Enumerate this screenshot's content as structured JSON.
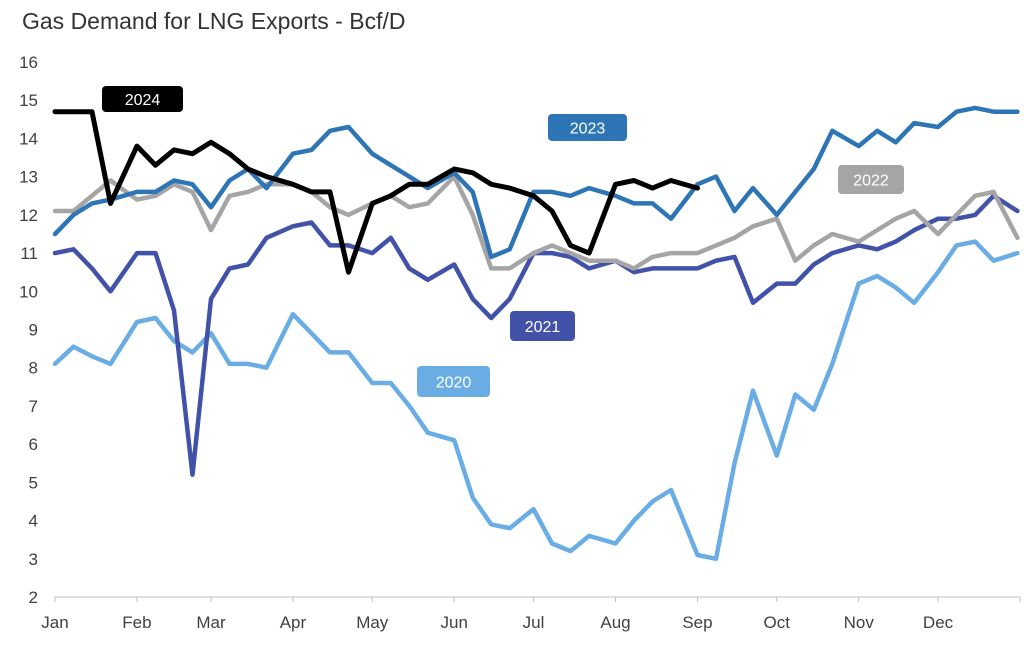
{
  "chart_data": {
    "type": "line",
    "title": "Gas Demand for LNG Exports - Bcf/D",
    "xlabel": "",
    "ylabel": "",
    "ylim": [
      2,
      16
    ],
    "yticks": [
      2,
      3,
      4,
      5,
      6,
      7,
      8,
      9,
      10,
      11,
      12,
      13,
      14,
      15,
      16
    ],
    "x_tick_labels": [
      "Jan",
      "Feb",
      "Mar",
      "Apr",
      "May",
      "Jun",
      "Jul",
      "Aug",
      "Sep",
      "Oct",
      "Nov",
      "Dec"
    ],
    "grid": false,
    "x": [
      "Jan 1",
      "Jan 8",
      "Jan 15",
      "Jan 22",
      "Feb 1",
      "Feb 8",
      "Feb 15",
      "Feb 22",
      "Mar 1",
      "Mar 8",
      "Mar 15",
      "Mar 22",
      "Apr 1",
      "Apr 8",
      "Apr 15",
      "Apr 22",
      "May 1",
      "May 8",
      "May 15",
      "May 22",
      "Jun 1",
      "Jun 8",
      "Jun 15",
      "Jun 22",
      "Jul 1",
      "Jul 8",
      "Jul 15",
      "Jul 22",
      "Aug 1",
      "Aug 8",
      "Aug 15",
      "Aug 22",
      "Sep 1",
      "Sep 8",
      "Sep 15",
      "Sep 22",
      "Oct 1",
      "Oct 8",
      "Oct 15",
      "Oct 22",
      "Nov 1",
      "Nov 8",
      "Nov 15",
      "Nov 22",
      "Dec 1",
      "Dec 8",
      "Dec 15",
      "Dec 22",
      "Dec 31"
    ],
    "series": [
      {
        "name": "2020",
        "color": "#6AADE4",
        "values": [
          8.1,
          8.55,
          8.3,
          8.1,
          9.2,
          9.3,
          8.7,
          8.4,
          8.9,
          8.1,
          8.1,
          8.0,
          9.4,
          8.9,
          8.4,
          8.4,
          7.6,
          7.6,
          7.0,
          6.3,
          6.1,
          4.6,
          3.9,
          3.8,
          4.3,
          3.4,
          3.2,
          3.6,
          3.4,
          4.0,
          4.5,
          4.8,
          3.1,
          3.0,
          5.5,
          7.4,
          5.7,
          7.3,
          6.9,
          8.1,
          10.2,
          10.4,
          10.1,
          9.7,
          10.5,
          11.2,
          11.3,
          10.8,
          11.0
        ]
      },
      {
        "name": "2021",
        "color": "#4252A8",
        "values": [
          11.0,
          11.1,
          10.6,
          10.0,
          11.0,
          11.0,
          9.5,
          5.2,
          9.8,
          10.6,
          10.7,
          11.4,
          11.7,
          11.8,
          11.2,
          11.2,
          11.0,
          11.4,
          10.6,
          10.3,
          10.7,
          9.8,
          9.3,
          9.8,
          11.0,
          11.0,
          10.9,
          10.6,
          10.8,
          10.5,
          10.6,
          10.6,
          10.6,
          10.8,
          10.9,
          9.7,
          10.2,
          10.2,
          10.7,
          11.0,
          11.2,
          11.1,
          11.3,
          11.6,
          11.9,
          11.9,
          12.0,
          12.5,
          12.1
        ]
      },
      {
        "name": "2022",
        "color": "#A5A5A5",
        "values": [
          12.1,
          12.1,
          12.5,
          12.9,
          12.4,
          12.5,
          12.8,
          12.6,
          11.6,
          12.5,
          12.6,
          12.8,
          12.8,
          12.6,
          12.2,
          12.0,
          12.3,
          12.5,
          12.2,
          12.3,
          13.0,
          12.0,
          10.6,
          10.6,
          11.0,
          11.2,
          11.0,
          10.8,
          10.8,
          10.6,
          10.9,
          11.0,
          11.0,
          11.2,
          11.4,
          11.7,
          11.9,
          10.8,
          11.2,
          11.5,
          11.3,
          11.6,
          11.9,
          12.1,
          11.5,
          12.0,
          12.5,
          12.6,
          11.4
        ]
      },
      {
        "name": "2023",
        "color": "#2E75B6",
        "values": [
          11.5,
          12.0,
          12.3,
          12.4,
          12.6,
          12.6,
          12.9,
          12.8,
          12.2,
          12.9,
          13.2,
          12.7,
          13.6,
          13.7,
          14.2,
          14.3,
          13.6,
          13.3,
          13.0,
          12.7,
          13.1,
          12.6,
          10.9,
          11.1,
          12.6,
          12.6,
          12.5,
          12.7,
          12.5,
          12.3,
          12.3,
          11.9,
          12.8,
          13.0,
          12.1,
          12.7,
          12.0,
          12.6,
          13.2,
          14.2,
          13.8,
          14.2,
          13.9,
          14.4,
          14.3,
          14.7,
          14.8,
          14.7,
          14.7
        ]
      },
      {
        "name": "2024",
        "color": "#000000",
        "values": [
          14.7,
          14.7,
          14.7,
          12.3,
          13.8,
          13.3,
          13.7,
          13.6,
          13.9,
          13.6,
          13.2,
          13.0,
          12.8,
          12.6,
          12.6,
          10.5,
          12.3,
          12.5,
          12.8,
          12.8,
          13.2,
          13.1,
          12.8,
          12.7,
          12.5,
          12.1,
          11.2,
          11.0,
          12.8,
          12.9,
          12.7,
          12.9,
          12.7,
          null,
          null,
          null,
          null,
          null,
          null,
          null,
          null,
          null,
          null,
          null,
          null,
          null,
          null,
          null,
          null
        ]
      }
    ]
  }
}
